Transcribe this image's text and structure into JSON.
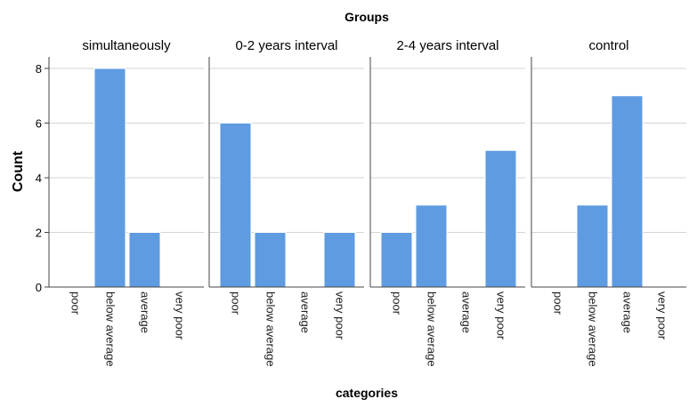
{
  "chart_data": {
    "type": "bar",
    "super_title": "Groups",
    "xlabel": "categories",
    "ylabel": "Count",
    "ylim": [
      0,
      8
    ],
    "yticks": [
      0,
      2,
      4,
      6,
      8
    ],
    "grid": true,
    "categories": [
      "poor",
      "below average",
      "average",
      "very poor"
    ],
    "bar_color": "#5f9be1",
    "panels": [
      {
        "name": "simultaneously",
        "values": [
          0,
          8,
          2,
          0
        ]
      },
      {
        "name": "0-2 years interval",
        "values": [
          6,
          2,
          0,
          2
        ]
      },
      {
        "name": "2-4 years interval",
        "values": [
          2,
          3,
          0,
          5
        ]
      },
      {
        "name": "control",
        "values": [
          0,
          3,
          7,
          0
        ]
      }
    ]
  }
}
